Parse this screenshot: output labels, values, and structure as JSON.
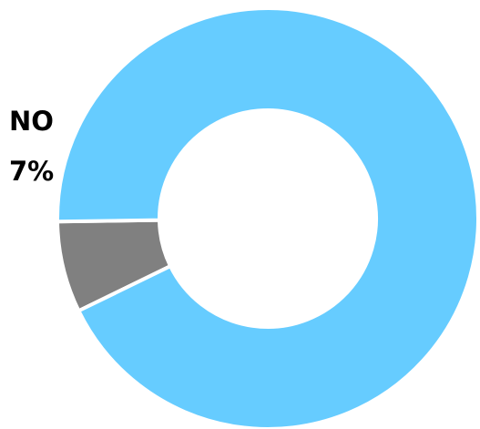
{
  "chart_data": {
    "type": "pie",
    "style": "donut",
    "slices": [
      {
        "label": "NO",
        "value": 7,
        "value_label": "7%",
        "color": "#808080",
        "show_label": true
      },
      {
        "label": "",
        "value": 93,
        "value_label": "",
        "color": "#66CCFF",
        "show_label": false
      }
    ],
    "separator_color": "#ffffff"
  }
}
